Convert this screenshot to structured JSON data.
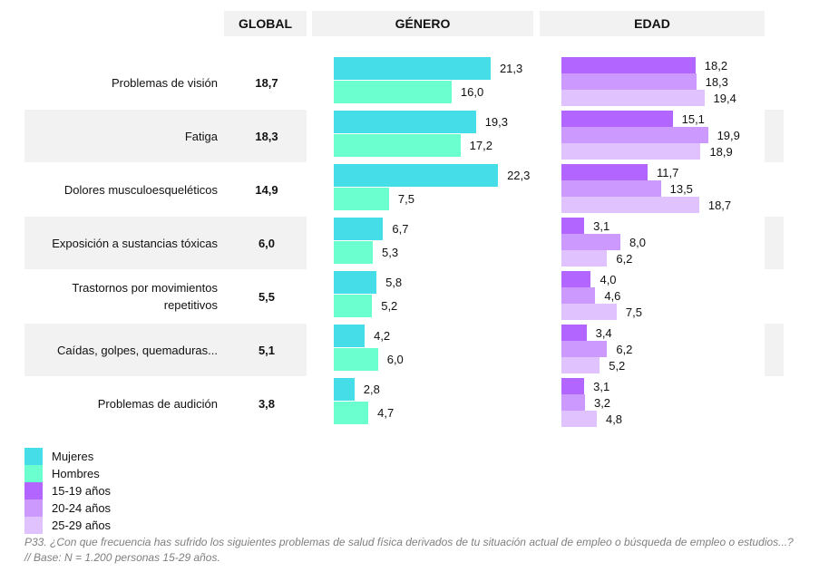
{
  "chart_data": {
    "type": "bar",
    "headers": {
      "global": "GLOBAL",
      "genero": "GÉNERO",
      "edad": "EDAD"
    },
    "categories": [
      "Problemas de visión",
      "Fatiga",
      "Dolores musculoesqueléticos",
      "Exposición a sustancias tóxicas",
      "Trastornos por movimientos repetitivos",
      "Caídas, golpes, quemaduras...",
      "Problemas de audición"
    ],
    "global": [
      "18,7",
      "18,3",
      "14,9",
      "6,0",
      "5,5",
      "5,1",
      "3,8"
    ],
    "series": [
      {
        "name": "Mujeres",
        "group": "genero",
        "color": "#44dde8",
        "values": [
          21.3,
          19.3,
          22.3,
          6.7,
          5.8,
          4.2,
          2.8
        ]
      },
      {
        "name": "Hombres",
        "group": "genero",
        "color": "#6bffd0",
        "values": [
          16.0,
          17.2,
          7.5,
          5.3,
          5.2,
          6.0,
          4.7
        ]
      },
      {
        "name": "15-19 años",
        "group": "edad",
        "color": "#b266ff",
        "values": [
          18.2,
          15.1,
          11.7,
          3.1,
          4.0,
          3.4,
          3.1
        ]
      },
      {
        "name": "20-24 años",
        "group": "edad",
        "color": "#cc99ff",
        "values": [
          18.3,
          19.9,
          13.5,
          8.0,
          4.6,
          6.2,
          3.2
        ]
      },
      {
        "name": "25-29 años",
        "group": "edad",
        "color": "#e0c2ff",
        "values": [
          19.4,
          18.9,
          18.7,
          6.2,
          7.5,
          5.2,
          4.8
        ]
      }
    ],
    "note": "P33. ¿Con que frecuencia has sufrido los siguientes problemas de salud física derivados de tu situación actual de empleo o búsqueda de empleo o estudios...? // Base: N = 1.200 personas 15-29 años."
  }
}
